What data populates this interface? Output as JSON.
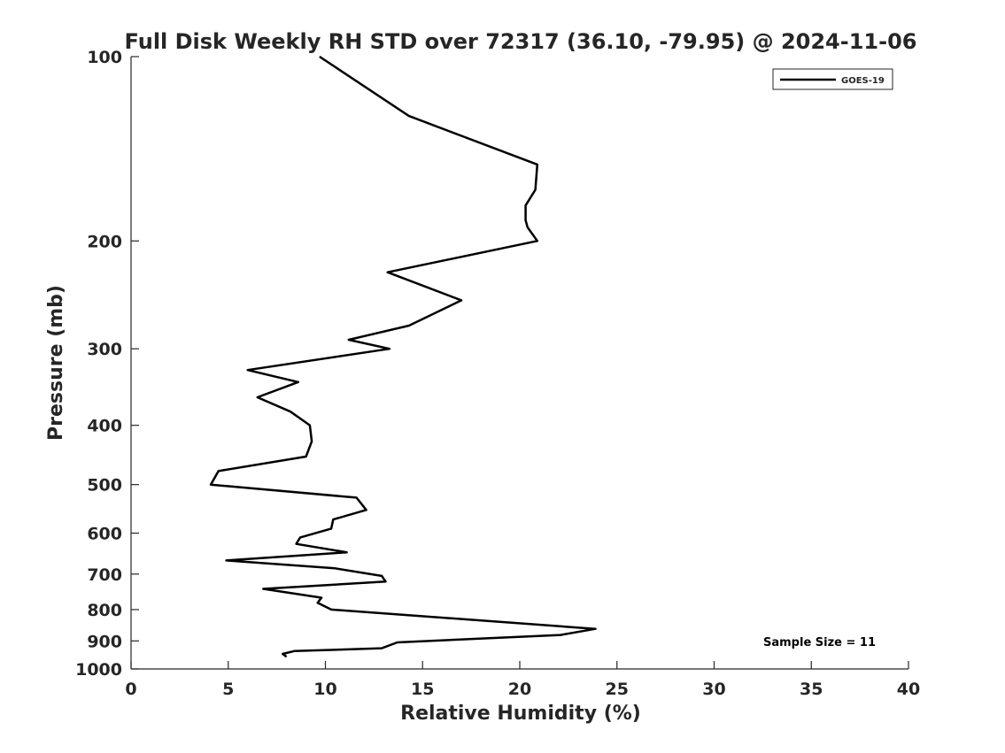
{
  "chart_data": {
    "type": "line",
    "title": "Full Disk Weekly RH STD over 72317 (36.10, -79.95) @ 2024-11-06",
    "xlabel": "Relative Humidity (%)",
    "ylabel": "Pressure (mb)",
    "xlim": [
      0,
      40
    ],
    "ylim": [
      1000,
      100
    ],
    "y_scale": "log",
    "x_ticks": [
      "0",
      "5",
      "10",
      "15",
      "20",
      "25",
      "30",
      "35",
      "40"
    ],
    "y_ticks": [
      {
        "value": 100,
        "label": "100"
      },
      {
        "value": 200,
        "label": "200"
      },
      {
        "value": 300,
        "label": "300"
      },
      {
        "value": 400,
        "label": "400"
      },
      {
        "value": 500,
        "label": "500"
      },
      {
        "value": 600,
        "label": "600"
      },
      {
        "value": 700,
        "label": "700"
      },
      {
        "value": 800,
        "label": "800"
      },
      {
        "value": 900,
        "label": "900"
      },
      {
        "value": 1000,
        "label": "1000"
      }
    ],
    "grid": false,
    "legend_position": "top-right",
    "series": [
      {
        "name": "GOES-19",
        "color": "#000000",
        "points": [
          [
            9.7,
            100
          ],
          [
            14.3,
            125
          ],
          [
            20.9,
            150
          ],
          [
            20.8,
            165
          ],
          [
            20.3,
            175
          ],
          [
            20.3,
            185
          ],
          [
            20.4,
            190
          ],
          [
            20.9,
            200
          ],
          [
            13.2,
            225
          ],
          [
            17.0,
            250
          ],
          [
            14.3,
            275
          ],
          [
            11.2,
            290
          ],
          [
            13.3,
            300
          ],
          [
            6.0,
            325
          ],
          [
            8.6,
            340
          ],
          [
            6.5,
            360
          ],
          [
            8.2,
            380
          ],
          [
            9.2,
            400
          ],
          [
            9.3,
            425
          ],
          [
            9.0,
            450
          ],
          [
            4.5,
            475
          ],
          [
            4.1,
            500
          ],
          [
            11.6,
            525
          ],
          [
            12.1,
            550
          ],
          [
            10.4,
            570
          ],
          [
            10.3,
            590
          ],
          [
            8.7,
            610
          ],
          [
            8.5,
            625
          ],
          [
            11.1,
            645
          ],
          [
            4.9,
            665
          ],
          [
            10.5,
            685
          ],
          [
            12.9,
            705
          ],
          [
            13.1,
            720
          ],
          [
            6.8,
            740
          ],
          [
            9.8,
            765
          ],
          [
            9.6,
            780
          ],
          [
            10.3,
            800
          ],
          [
            23.9,
            860
          ],
          [
            22.1,
            880
          ],
          [
            13.7,
            905
          ],
          [
            12.9,
            925
          ],
          [
            8.4,
            935
          ],
          [
            7.8,
            945
          ],
          [
            8.0,
            955
          ]
        ]
      }
    ],
    "annotations": [
      "Sample Size = 11"
    ]
  }
}
